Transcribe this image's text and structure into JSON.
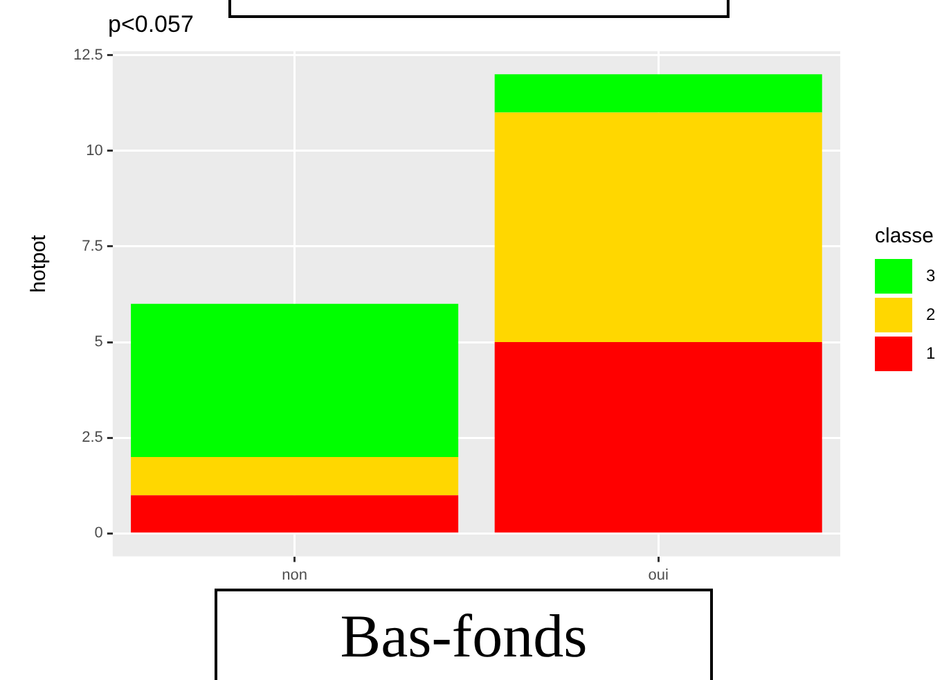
{
  "chart_data": {
    "type": "bar",
    "title": "Bas-fonds",
    "ylabel": "hotpot",
    "legend_title": "classe",
    "annotations": [
      "p<0.057"
    ],
    "categories": [
      "non",
      "oui"
    ],
    "stacked": true,
    "series": [
      {
        "name": "1",
        "color": "#ff0000",
        "values": [
          1,
          5
        ]
      },
      {
        "name": "2",
        "color": "#ffd700",
        "values": [
          1,
          6
        ]
      },
      {
        "name": "3",
        "color": "#00ff00",
        "values": [
          4,
          1
        ]
      }
    ],
    "ylim": [
      -0.6,
      12.6
    ],
    "yticks": [
      0,
      2.5,
      5,
      7.5,
      10,
      12.5
    ],
    "grid": true,
    "legend": "right"
  }
}
